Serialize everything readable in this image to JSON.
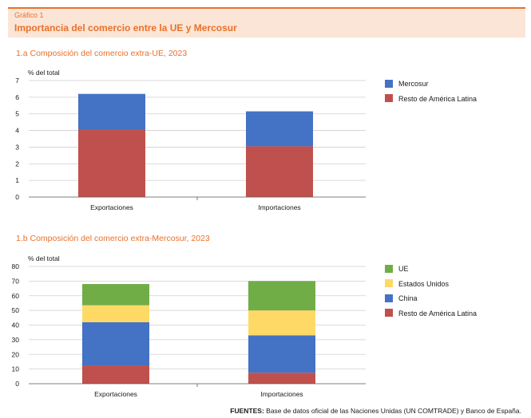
{
  "header": {
    "kicker": "Gráfico 1",
    "title": "Importancia del comercio entre la UE y Mercosur"
  },
  "colors": {
    "orange": "#e8712b",
    "blue": "#4472c4",
    "red": "#c0504d",
    "green": "#70ad47",
    "yellow": "#ffd966",
    "grid": "#cfcfcf"
  },
  "chart_data": [
    {
      "type": "bar",
      "stacked": true,
      "subtitle": "1.a  Composición del comercio extra-UE, 2023",
      "ylabel": "% del total",
      "ylim": [
        0,
        7
      ],
      "yticks": [
        "0",
        "1",
        "2",
        "3",
        "4",
        "5",
        "6",
        "7"
      ],
      "categories": [
        "Exportaciones",
        "Importaciones"
      ],
      "series": [
        {
          "name": "Resto de América Latina",
          "color": "#c0504d",
          "values": [
            4.05,
            3.05
          ]
        },
        {
          "name": "Mercosur",
          "color": "#4472c4",
          "values": [
            2.15,
            2.1
          ]
        }
      ],
      "legend": [
        {
          "name": "Mercosur",
          "color": "#4472c4"
        },
        {
          "name": "Resto de América Latina",
          "color": "#c0504d"
        }
      ]
    },
    {
      "type": "bar",
      "stacked": true,
      "subtitle": "1.b  Composición del comercio extra-Mercosur, 2023",
      "ylabel": "% del total",
      "ylim": [
        0,
        80
      ],
      "yticks": [
        "0",
        "10",
        "20",
        "30",
        "40",
        "50",
        "60",
        "70",
        "80"
      ],
      "categories": [
        "Exportaciones",
        "Importaciones"
      ],
      "series": [
        {
          "name": "Resto de América Latina",
          "color": "#c0504d",
          "values": [
            12.5,
            7.5
          ]
        },
        {
          "name": "China",
          "color": "#4472c4",
          "values": [
            29.5,
            25.5
          ]
        },
        {
          "name": "Estados Unidos",
          "color": "#ffd966",
          "values": [
            11.5,
            17.0
          ]
        },
        {
          "name": "UE",
          "color": "#70ad47",
          "values": [
            14.5,
            20.0
          ]
        }
      ],
      "legend": [
        {
          "name": "UE",
          "color": "#70ad47"
        },
        {
          "name": "Estados Unidos",
          "color": "#ffd966"
        },
        {
          "name": "China",
          "color": "#4472c4"
        },
        {
          "name": "Resto de América Latina",
          "color": "#c0504d"
        }
      ]
    }
  ],
  "source": {
    "label": "FUENTES:",
    "text": " Base de datos oficial de las Naciones Unidas (UN COMTRADE) y Banco de España."
  }
}
